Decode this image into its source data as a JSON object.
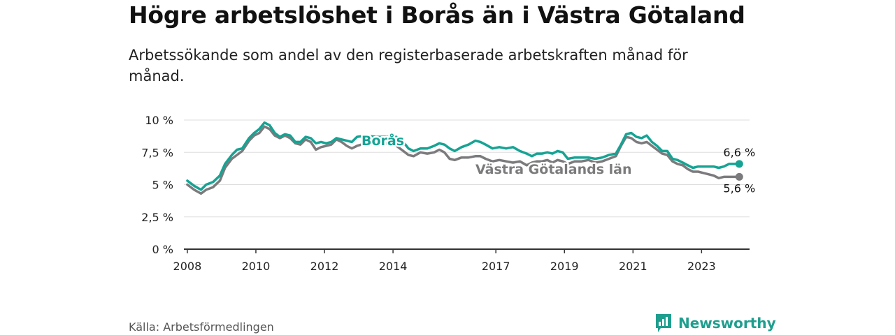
{
  "title": "Högre arbetslöshet i Borås än i Västra Götaland",
  "subtitle": "Arbetssökande som andel av den registerbaserade arbetskraften månad för månad.",
  "source": "Källa: Arbetsförmedlingen",
  "brand": {
    "name": "Newsworthy",
    "icon": "newsworthy-logo-icon"
  },
  "colors": {
    "boras": "#16a394",
    "vg": "#7b7b7d",
    "grid": "#dddddd",
    "axis": "#333333",
    "brand": "#1f9e8e"
  },
  "chart_data": {
    "type": "line",
    "x_range": [
      2007.9,
      2024.4
    ],
    "ylim": [
      0,
      10
    ],
    "y_ticks": [
      {
        "value": 0,
        "label": "0 %"
      },
      {
        "value": 2.5,
        "label": "2,5 %"
      },
      {
        "value": 5,
        "label": "5 %"
      },
      {
        "value": 7.5,
        "label": "7,5 %"
      },
      {
        "value": 10,
        "label": "10 %"
      }
    ],
    "x_ticks": [
      {
        "value": 2008,
        "label": "2008"
      },
      {
        "value": 2010,
        "label": "2010"
      },
      {
        "value": 2012,
        "label": "2012"
      },
      {
        "value": 2014,
        "label": "2014"
      },
      {
        "value": 2017,
        "label": "2017"
      },
      {
        "value": 2019,
        "label": "2019"
      },
      {
        "value": 2021,
        "label": "2021"
      },
      {
        "value": 2023,
        "label": "2023"
      }
    ],
    "series": [
      {
        "name": "Borås",
        "label": "Borås",
        "end_label": "6,6 %",
        "points": [
          [
            2008.0,
            5.3
          ],
          [
            2008.2,
            4.9
          ],
          [
            2008.4,
            4.6
          ],
          [
            2008.55,
            5.0
          ],
          [
            2008.75,
            5.2
          ],
          [
            2008.95,
            5.7
          ],
          [
            2009.1,
            6.6
          ],
          [
            2009.3,
            7.3
          ],
          [
            2009.45,
            7.7
          ],
          [
            2009.6,
            7.8
          ],
          [
            2009.8,
            8.6
          ],
          [
            2009.95,
            9.0
          ],
          [
            2010.1,
            9.3
          ],
          [
            2010.25,
            9.8
          ],
          [
            2010.4,
            9.6
          ],
          [
            2010.55,
            9.0
          ],
          [
            2010.7,
            8.7
          ],
          [
            2010.85,
            8.9
          ],
          [
            2011.0,
            8.8
          ],
          [
            2011.15,
            8.3
          ],
          [
            2011.3,
            8.3
          ],
          [
            2011.45,
            8.7
          ],
          [
            2011.6,
            8.6
          ],
          [
            2011.75,
            8.2
          ],
          [
            2011.9,
            8.3
          ],
          [
            2012.05,
            8.2
          ],
          [
            2012.2,
            8.3
          ],
          [
            2012.35,
            8.6
          ],
          [
            2012.5,
            8.5
          ],
          [
            2012.65,
            8.4
          ],
          [
            2012.8,
            8.3
          ],
          [
            2012.95,
            8.7
          ],
          [
            2013.2,
            8.8
          ],
          [
            2013.5,
            8.7
          ],
          [
            2013.8,
            8.7
          ],
          [
            2014.1,
            8.7
          ],
          [
            2014.3,
            8.3
          ],
          [
            2014.45,
            7.8
          ],
          [
            2014.6,
            7.6
          ],
          [
            2014.8,
            7.8
          ],
          [
            2015.0,
            7.8
          ],
          [
            2015.2,
            8.0
          ],
          [
            2015.35,
            8.2
          ],
          [
            2015.5,
            8.1
          ],
          [
            2015.65,
            7.8
          ],
          [
            2015.8,
            7.6
          ],
          [
            2016.0,
            7.9
          ],
          [
            2016.2,
            8.1
          ],
          [
            2016.4,
            8.4
          ],
          [
            2016.55,
            8.3
          ],
          [
            2016.7,
            8.1
          ],
          [
            2016.9,
            7.8
          ],
          [
            2017.1,
            7.9
          ],
          [
            2017.3,
            7.8
          ],
          [
            2017.5,
            7.9
          ],
          [
            2017.7,
            7.6
          ],
          [
            2017.9,
            7.4
          ],
          [
            2018.05,
            7.2
          ],
          [
            2018.2,
            7.4
          ],
          [
            2018.35,
            7.4
          ],
          [
            2018.5,
            7.5
          ],
          [
            2018.65,
            7.4
          ],
          [
            2018.8,
            7.6
          ],
          [
            2018.95,
            7.5
          ],
          [
            2019.1,
            7.0
          ],
          [
            2019.3,
            7.1
          ],
          [
            2019.5,
            7.1
          ],
          [
            2019.7,
            7.1
          ],
          [
            2019.9,
            7.0
          ],
          [
            2020.1,
            7.1
          ],
          [
            2020.3,
            7.3
          ],
          [
            2020.5,
            7.4
          ],
          [
            2020.65,
            8.1
          ],
          [
            2020.8,
            8.9
          ],
          [
            2020.95,
            9.0
          ],
          [
            2021.1,
            8.7
          ],
          [
            2021.25,
            8.6
          ],
          [
            2021.4,
            8.8
          ],
          [
            2021.55,
            8.3
          ],
          [
            2021.7,
            8.0
          ],
          [
            2021.85,
            7.6
          ],
          [
            2022.0,
            7.6
          ],
          [
            2022.15,
            7.0
          ],
          [
            2022.3,
            6.9
          ],
          [
            2022.45,
            6.7
          ],
          [
            2022.6,
            6.5
          ],
          [
            2022.75,
            6.3
          ],
          [
            2022.9,
            6.4
          ],
          [
            2023.05,
            6.4
          ],
          [
            2023.2,
            6.4
          ],
          [
            2023.35,
            6.4
          ],
          [
            2023.5,
            6.3
          ],
          [
            2023.65,
            6.4
          ],
          [
            2023.8,
            6.6
          ],
          [
            2023.95,
            6.6
          ],
          [
            2024.1,
            6.6
          ]
        ]
      },
      {
        "name": "Västra Götalands län",
        "label": "Västra Götalands län",
        "end_label": "5,6 %",
        "points": [
          [
            2008.0,
            5.0
          ],
          [
            2008.2,
            4.6
          ],
          [
            2008.4,
            4.3
          ],
          [
            2008.55,
            4.6
          ],
          [
            2008.75,
            4.8
          ],
          [
            2008.95,
            5.3
          ],
          [
            2009.1,
            6.3
          ],
          [
            2009.3,
            7.0
          ],
          [
            2009.45,
            7.3
          ],
          [
            2009.6,
            7.6
          ],
          [
            2009.8,
            8.4
          ],
          [
            2009.95,
            8.8
          ],
          [
            2010.1,
            9.0
          ],
          [
            2010.25,
            9.5
          ],
          [
            2010.4,
            9.3
          ],
          [
            2010.55,
            8.8
          ],
          [
            2010.7,
            8.6
          ],
          [
            2010.85,
            8.8
          ],
          [
            2011.0,
            8.6
          ],
          [
            2011.15,
            8.2
          ],
          [
            2011.3,
            8.1
          ],
          [
            2011.45,
            8.5
          ],
          [
            2011.6,
            8.3
          ],
          [
            2011.75,
            7.7
          ],
          [
            2011.9,
            7.9
          ],
          [
            2012.05,
            8.0
          ],
          [
            2012.2,
            8.1
          ],
          [
            2012.35,
            8.5
          ],
          [
            2012.5,
            8.3
          ],
          [
            2012.65,
            8.0
          ],
          [
            2012.8,
            7.8
          ],
          [
            2012.95,
            8.0
          ],
          [
            2013.2,
            8.2
          ],
          [
            2013.5,
            8.1
          ],
          [
            2013.8,
            8.2
          ],
          [
            2014.1,
            8.0
          ],
          [
            2014.3,
            7.6
          ],
          [
            2014.45,
            7.3
          ],
          [
            2014.6,
            7.2
          ],
          [
            2014.8,
            7.5
          ],
          [
            2015.0,
            7.4
          ],
          [
            2015.2,
            7.5
          ],
          [
            2015.35,
            7.7
          ],
          [
            2015.5,
            7.5
          ],
          [
            2015.65,
            7.0
          ],
          [
            2015.8,
            6.9
          ],
          [
            2016.0,
            7.1
          ],
          [
            2016.2,
            7.1
          ],
          [
            2016.4,
            7.2
          ],
          [
            2016.55,
            7.2
          ],
          [
            2016.7,
            7.0
          ],
          [
            2016.9,
            6.8
          ],
          [
            2017.1,
            6.9
          ],
          [
            2017.3,
            6.8
          ],
          [
            2017.5,
            6.7
          ],
          [
            2017.7,
            6.8
          ],
          [
            2017.9,
            6.5
          ],
          [
            2018.05,
            6.7
          ],
          [
            2018.2,
            6.8
          ],
          [
            2018.35,
            6.8
          ],
          [
            2018.5,
            6.9
          ],
          [
            2018.65,
            6.7
          ],
          [
            2018.8,
            6.9
          ],
          [
            2018.95,
            6.8
          ],
          [
            2019.1,
            6.6
          ],
          [
            2019.3,
            6.8
          ],
          [
            2019.5,
            6.8
          ],
          [
            2019.7,
            6.9
          ],
          [
            2019.9,
            6.7
          ],
          [
            2020.1,
            6.8
          ],
          [
            2020.3,
            7.0
          ],
          [
            2020.5,
            7.2
          ],
          [
            2020.65,
            8.0
          ],
          [
            2020.8,
            8.7
          ],
          [
            2020.95,
            8.6
          ],
          [
            2021.1,
            8.3
          ],
          [
            2021.25,
            8.2
          ],
          [
            2021.4,
            8.3
          ],
          [
            2021.55,
            8.0
          ],
          [
            2021.7,
            7.7
          ],
          [
            2021.85,
            7.4
          ],
          [
            2022.0,
            7.3
          ],
          [
            2022.15,
            6.8
          ],
          [
            2022.3,
            6.6
          ],
          [
            2022.45,
            6.5
          ],
          [
            2022.6,
            6.2
          ],
          [
            2022.75,
            6.0
          ],
          [
            2022.9,
            6.0
          ],
          [
            2023.05,
            5.9
          ],
          [
            2023.2,
            5.8
          ],
          [
            2023.35,
            5.7
          ],
          [
            2023.5,
            5.5
          ],
          [
            2023.65,
            5.6
          ],
          [
            2023.8,
            5.6
          ],
          [
            2023.95,
            5.6
          ],
          [
            2024.1,
            5.6
          ]
        ]
      }
    ]
  }
}
